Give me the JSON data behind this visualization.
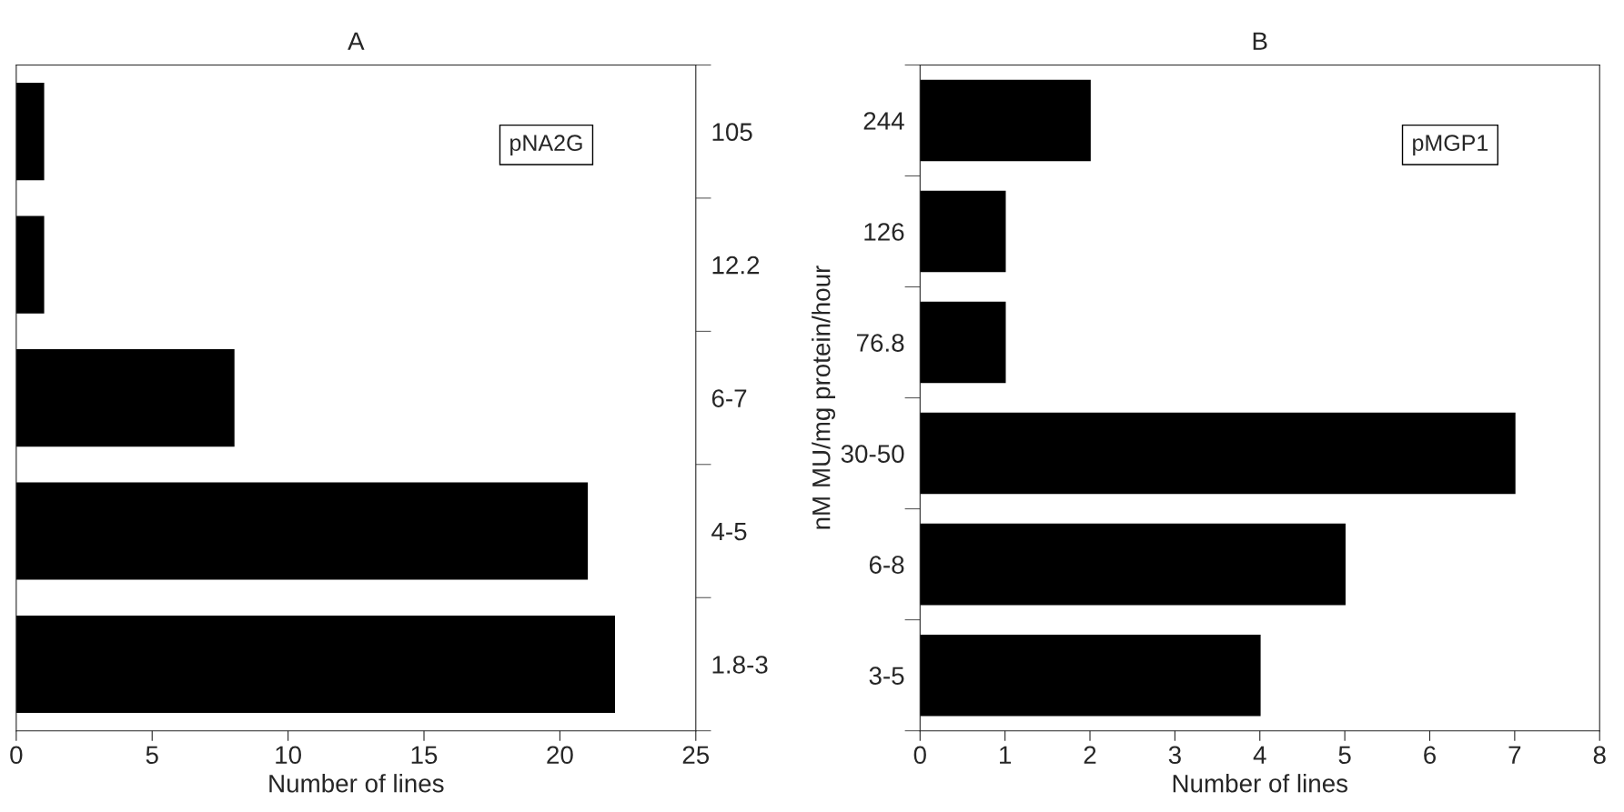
{
  "chart_data": [
    {
      "type": "bar",
      "orientation": "horizontal",
      "title": "A",
      "xlabel": "Number of lines",
      "categories": [
        "105",
        "12.2",
        "6-7",
        "4-5",
        "1.8-3"
      ],
      "values": [
        1,
        1,
        8,
        21,
        22
      ],
      "color": "#000000",
      "xlim": [
        0,
        25
      ],
      "xticks": [
        0,
        5,
        10,
        15,
        20,
        25
      ],
      "grid": false,
      "legend": false,
      "annotations": [
        "pNA2G"
      ]
    },
    {
      "type": "bar",
      "orientation": "horizontal",
      "title": "B",
      "xlabel": "Number of lines",
      "ylabel": "nM MU/mg protein/hour",
      "categories": [
        "244",
        "126",
        "76.8",
        "30-50",
        "6-8",
        "3-5"
      ],
      "values": [
        2,
        1,
        1,
        7,
        5,
        4
      ],
      "color": "#000000",
      "xlim": [
        0,
        8
      ],
      "xticks": [
        0,
        1,
        2,
        3,
        4,
        5,
        6,
        7,
        8
      ],
      "grid": false,
      "legend": false,
      "annotations": [
        "pMGP1"
      ]
    }
  ]
}
